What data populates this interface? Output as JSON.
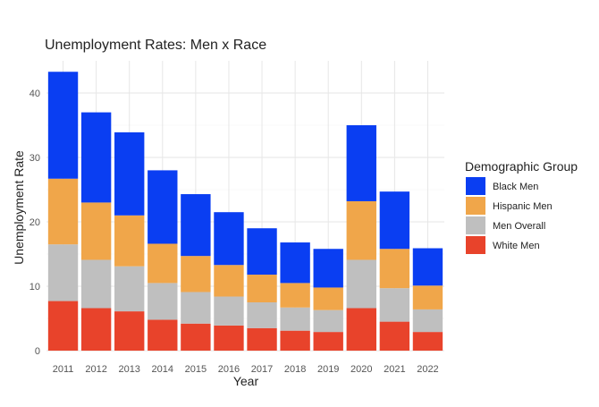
{
  "chart_data": {
    "type": "bar",
    "stacked": true,
    "title": "Unemployment Rates: Men x Race",
    "xlabel": "Year",
    "ylabel": "Unemployment Rate",
    "categories": [
      "2011",
      "2012",
      "2013",
      "2014",
      "2015",
      "2016",
      "2017",
      "2018",
      "2019",
      "2020",
      "2021",
      "2022"
    ],
    "ylim": [
      0,
      45
    ],
    "yticks": [
      0,
      10,
      20,
      30,
      40
    ],
    "grid": true,
    "legend": {
      "title": "Demographic Group",
      "position": "right"
    },
    "series": [
      {
        "name": "White Men",
        "color": "#e8432b",
        "values": [
          7.7,
          6.6,
          6.1,
          4.8,
          4.2,
          3.9,
          3.5,
          3.1,
          2.9,
          6.6,
          4.5,
          2.9
        ]
      },
      {
        "name": "Men Overall",
        "color": "#bfbfbf",
        "values": [
          8.8,
          7.5,
          7.0,
          5.7,
          4.9,
          4.5,
          4.0,
          3.6,
          3.4,
          7.5,
          5.2,
          3.5
        ]
      },
      {
        "name": "Hispanic Men",
        "color": "#f0a64a",
        "values": [
          10.2,
          8.9,
          7.9,
          6.1,
          5.6,
          4.9,
          4.3,
          3.8,
          3.5,
          9.1,
          6.1,
          3.7
        ]
      },
      {
        "name": "Black Men",
        "color": "#0a3ef2",
        "values": [
          16.6,
          14.0,
          12.9,
          11.4,
          9.6,
          8.2,
          7.2,
          6.3,
          6.0,
          11.8,
          8.9,
          5.8
        ]
      }
    ],
    "legend_order": [
      "Black Men",
      "Hispanic Men",
      "Men Overall",
      "White Men"
    ]
  }
}
